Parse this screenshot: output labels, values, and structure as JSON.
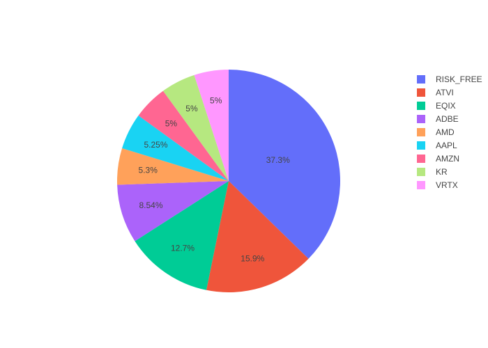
{
  "chart_data": {
    "type": "pie",
    "title": "",
    "legend_position": "right",
    "slices": [
      {
        "name": "RISK_FREE",
        "percent": 37.3,
        "label": "37.3%",
        "color": "#636efa"
      },
      {
        "name": "ATVI",
        "percent": 15.9,
        "label": "15.9%",
        "color": "#EF553B"
      },
      {
        "name": "EQIX",
        "percent": 12.7,
        "label": "12.7%",
        "color": "#00cc96"
      },
      {
        "name": "ADBE",
        "percent": 8.54,
        "label": "8.54%",
        "color": "#ab63fa"
      },
      {
        "name": "AMD",
        "percent": 5.3,
        "label": "5.3%",
        "color": "#FFA15A"
      },
      {
        "name": "AAPL",
        "percent": 5.25,
        "label": "5.25%",
        "color": "#19d3f3"
      },
      {
        "name": "AMZN",
        "percent": 5,
        "label": "5%",
        "color": "#FF6692"
      },
      {
        "name": "KR",
        "percent": 5,
        "label": "5%",
        "color": "#B6E880"
      },
      {
        "name": "VRTX",
        "percent": 5,
        "label": "5%",
        "color": "#FF97FF"
      }
    ]
  }
}
